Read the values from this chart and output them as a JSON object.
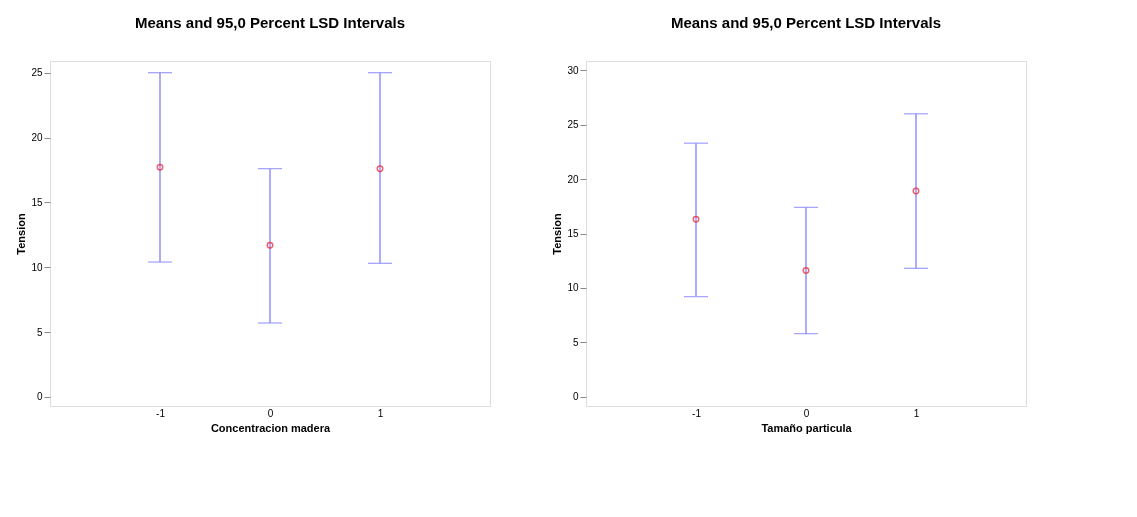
{
  "chart_data": [
    {
      "type": "scatter",
      "title": "Means and 95,0 Percent LSD Intervals",
      "xlabel": "Concentracion madera",
      "ylabel": "Tension",
      "categories": [
        "-1",
        "0",
        "1"
      ],
      "series": [
        {
          "color": "#e8202a",
          "values": [
            17.7,
            11.7,
            17.6
          ],
          "errors": [
            [
              10.4,
              25.0
            ],
            [
              5.7,
              17.6
            ],
            [
              10.3,
              25.0
            ]
          ]
        }
      ],
      "ylim": [
        -0.7,
        25.9
      ],
      "yticks": [
        0,
        5,
        10,
        15,
        20,
        25
      ],
      "marker": "circle"
    },
    {
      "type": "scatter",
      "title": "Means and 95,0 Percent LSD Intervals",
      "xlabel": "Tamaño particula",
      "ylabel": "Tension",
      "categories": [
        "-1",
        "0",
        "1"
      ],
      "series": [
        {
          "color": "#e8202a",
          "values": [
            16.3,
            11.6,
            18.9
          ],
          "errors": [
            [
              9.2,
              23.3
            ],
            [
              5.8,
              17.4
            ],
            [
              11.8,
              26.0
            ]
          ]
        }
      ],
      "ylim": [
        -0.85,
        30.85
      ],
      "yticks": [
        0,
        5,
        10,
        15,
        20,
        25,
        30
      ],
      "marker": "circle"
    }
  ]
}
